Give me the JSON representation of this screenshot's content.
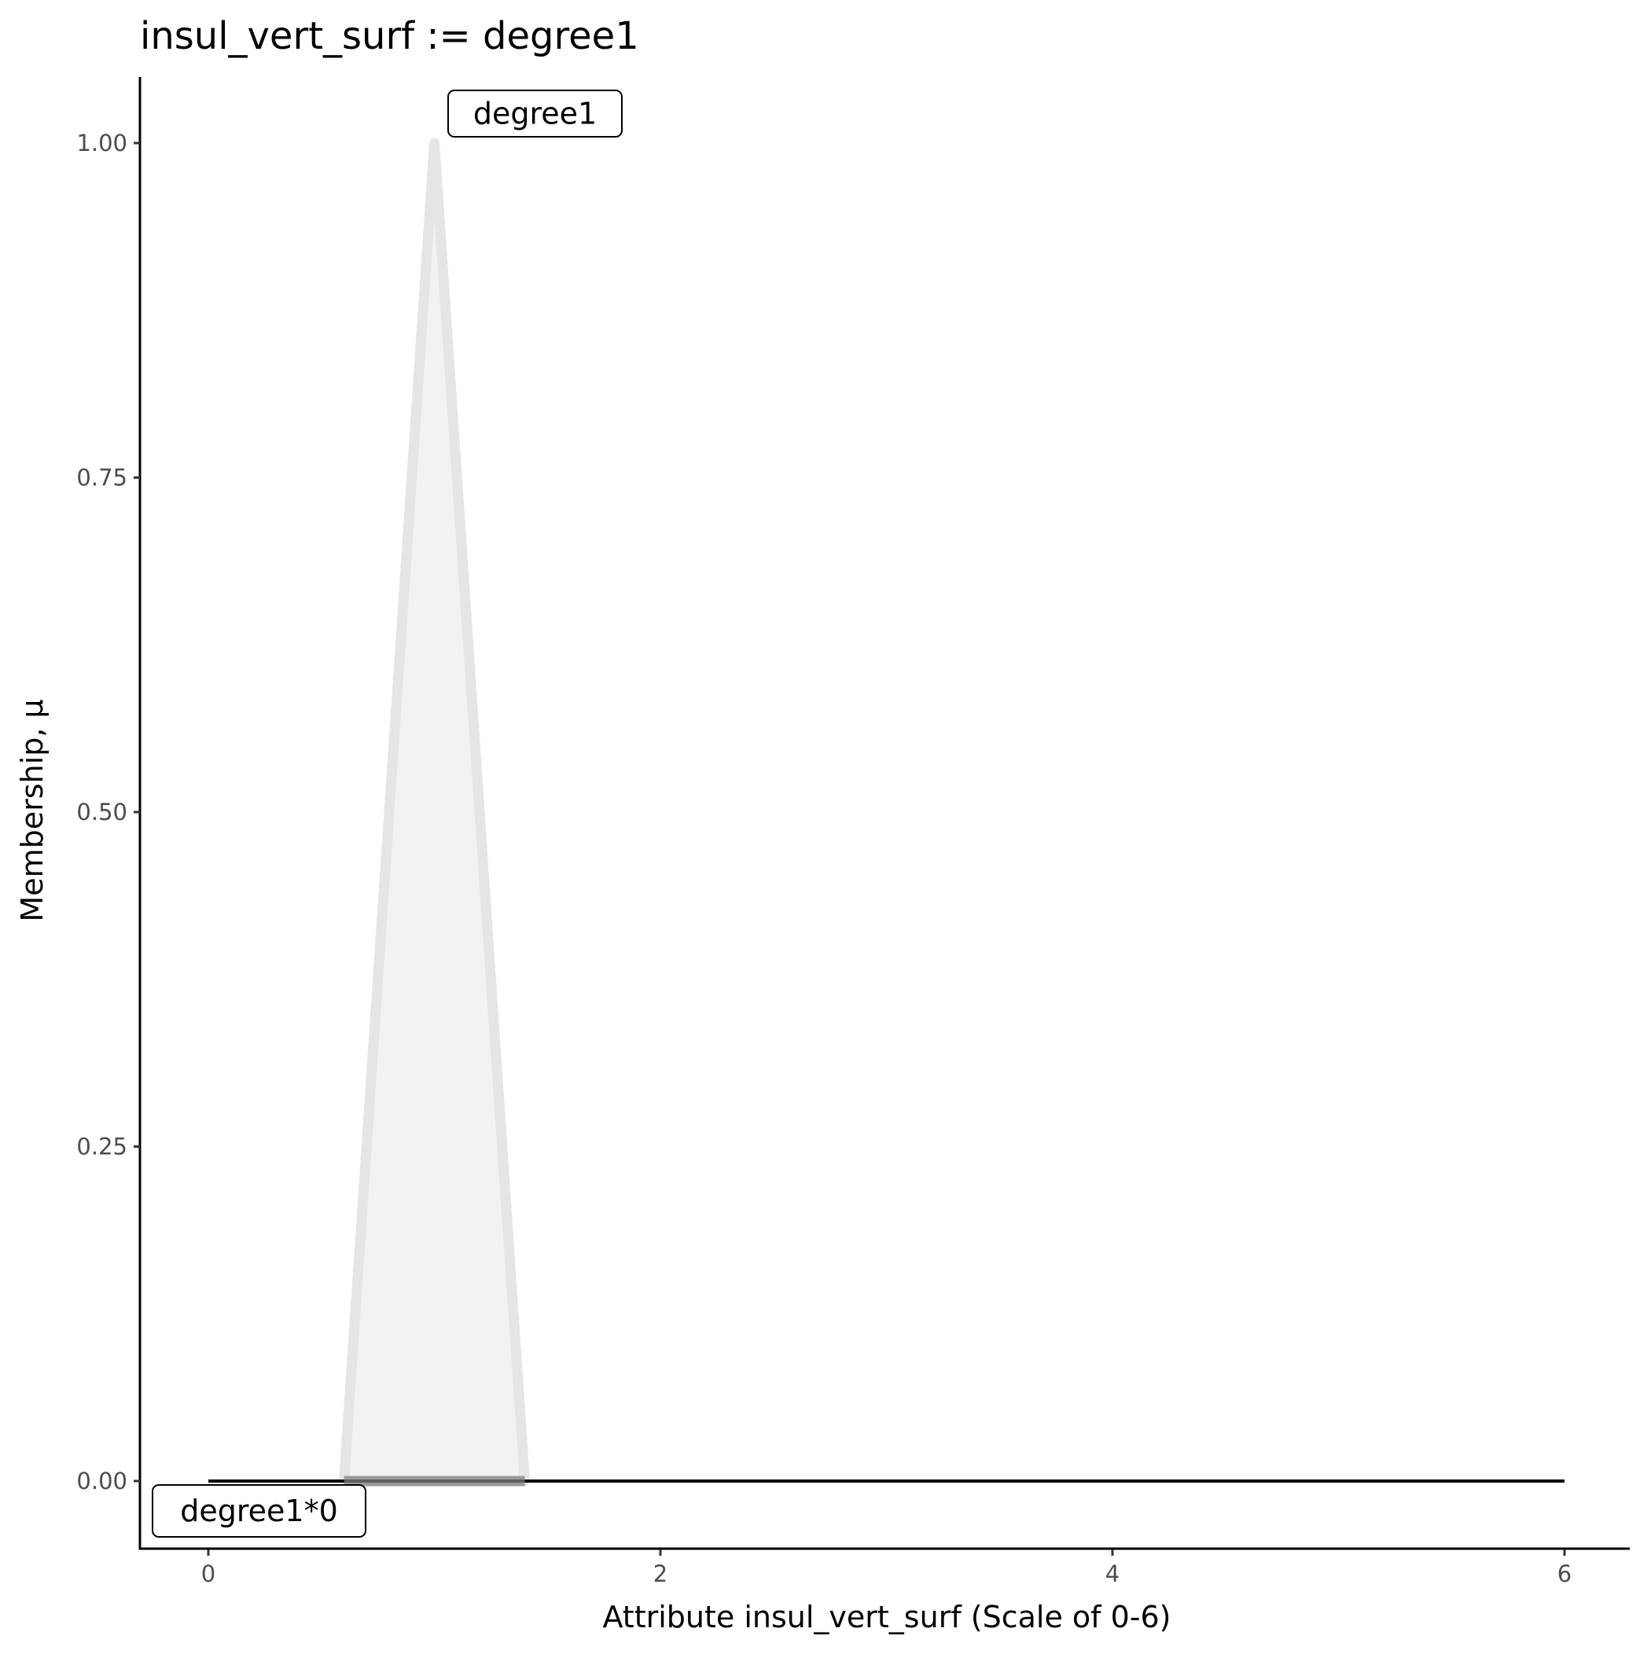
{
  "chart_data": {
    "type": "area",
    "title": "insul_vert_surf := degree1",
    "xlabel": "Attribute insul_vert_surf (Scale of 0-6)",
    "ylabel": "Membership, μ",
    "xlim": [
      -0.15,
      6.3
    ],
    "ylim": [
      -0.05,
      1.05
    ],
    "x_ticks": [
      0,
      2,
      4,
      6
    ],
    "x_tick_labels": [
      "0",
      "2",
      "4",
      "6"
    ],
    "y_ticks": [
      0,
      0.25,
      0.5,
      0.75,
      1
    ],
    "y_tick_labels": [
      "0.00",
      "0.25",
      "0.50",
      "0.75",
      "1.00"
    ],
    "grid": false,
    "series": [
      {
        "name": "degree1",
        "x": [
          0.6,
          1.0,
          1.4
        ],
        "y": [
          0,
          1,
          0
        ],
        "stroke": "#e5e5e5",
        "fill": "#f2f2f2"
      }
    ],
    "support_segment": {
      "x": [
        0.6,
        1.4
      ],
      "y": 0,
      "color": "#808080"
    },
    "baseline": {
      "x": [
        0,
        6
      ],
      "y": 0,
      "color": "#000000"
    },
    "annotations": [
      {
        "text": "degree1",
        "x": 1.0,
        "y": 1.0
      },
      {
        "text": "degree1*0",
        "x": 0.0,
        "y": 0.0
      }
    ]
  }
}
